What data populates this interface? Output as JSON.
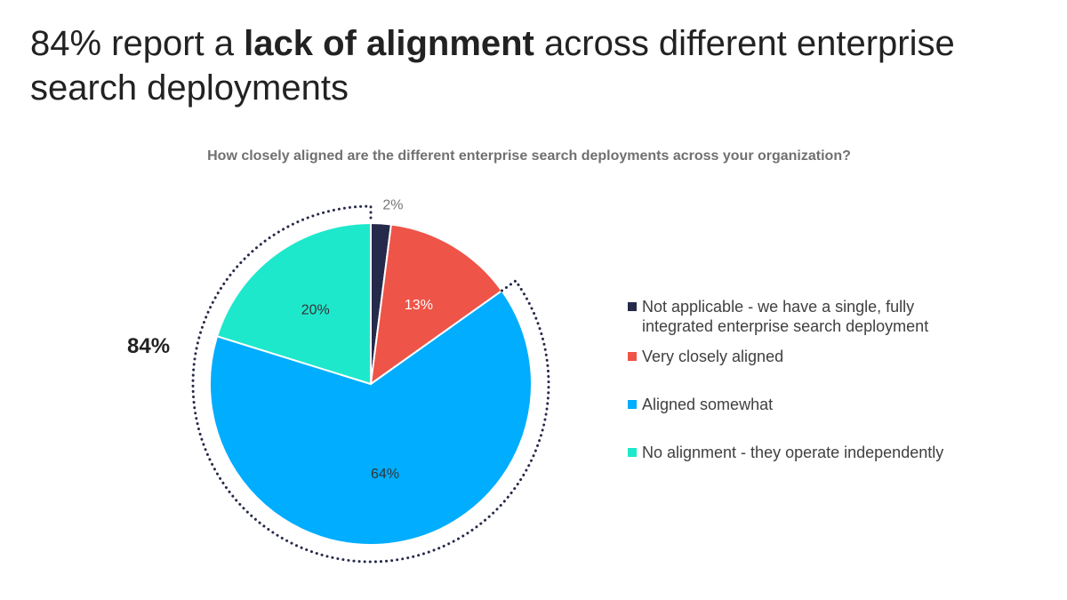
{
  "title": {
    "prefix": "84% report a ",
    "emphasis": "lack of alignment",
    "suffix": " across different enterprise search deployments"
  },
  "callout_label": "84%",
  "colors": {
    "not_applicable": "#262a4a",
    "very_closely": "#ee5448",
    "somewhat": "#00adfe",
    "no_alignment": "#1ee8cc",
    "dotted_arc": "#262a4a"
  },
  "chart_data": {
    "type": "pie",
    "title": "How closely aligned are the different enterprise search deployments across your organization?",
    "start_angle_deg": 0,
    "direction": "clockwise",
    "slices": [
      {
        "label": "Not applicable - we have a single, fully integrated enterprise search deployment",
        "value": 2,
        "value_label": "2%",
        "color": "#262a4a"
      },
      {
        "label": "Very closely aligned",
        "value": 13,
        "value_label": "13%",
        "color": "#ee5448"
      },
      {
        "label": "Aligned somewhat",
        "value": 64,
        "value_label": "64%",
        "color": "#00adfe"
      },
      {
        "label": "No alignment - they operate independently",
        "value": 20,
        "value_label": "20%",
        "color": "#1ee8cc"
      }
    ],
    "highlight": {
      "label": "84%",
      "slices": [
        "Aligned somewhat",
        "No alignment - they operate independently"
      ]
    },
    "legend_position": "right"
  }
}
